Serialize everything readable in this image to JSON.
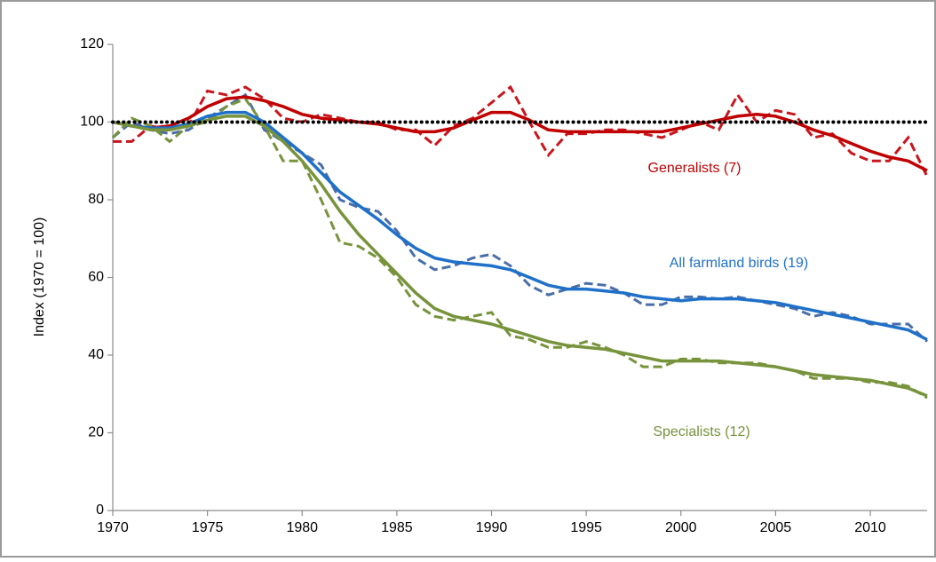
{
  "chart_data": {
    "type": "line",
    "y_label": "Index (1970 = 100)",
    "x": [
      1970,
      1971,
      1972,
      1973,
      1974,
      1975,
      1976,
      1977,
      1978,
      1979,
      1980,
      1981,
      1982,
      1983,
      1984,
      1985,
      1986,
      1987,
      1988,
      1989,
      1990,
      1991,
      1992,
      1993,
      1994,
      1995,
      1996,
      1997,
      1998,
      1999,
      2000,
      2001,
      2002,
      2003,
      2004,
      2005,
      2006,
      2007,
      2008,
      2009,
      2010,
      2011,
      2012,
      2013
    ],
    "xlim": [
      1970,
      2013
    ],
    "xticks": [
      1970,
      1975,
      1980,
      1985,
      1990,
      1995,
      2000,
      2005,
      2010
    ],
    "ylim": [
      0,
      120
    ],
    "yticks": [
      0,
      20,
      40,
      60,
      80,
      100,
      120
    ],
    "grid": false,
    "reference_line": 100,
    "series": [
      {
        "name": "Generalists (7)",
        "color": "#c00000",
        "raw_color": "#c8161d",
        "values": [
          100,
          99,
          98.5,
          99,
          101,
          104,
          106,
          106.5,
          105.5,
          104,
          102,
          101,
          100.5,
          100,
          99.5,
          98.5,
          97.5,
          97.5,
          98.5,
          100.5,
          102.5,
          102.5,
          100.5,
          98,
          97.5,
          97.5,
          97.5,
          97.5,
          97.5,
          97.5,
          98.5,
          99.5,
          100.5,
          101.5,
          102,
          101.5,
          100,
          98,
          96.5,
          94.5,
          92.5,
          91,
          90,
          87.5
        ],
        "unsmoothed": [
          95,
          95,
          99,
          98,
          99,
          108,
          107,
          109,
          106,
          101,
          100,
          102,
          101,
          100,
          100,
          98,
          98,
          94,
          99,
          101,
          105,
          109,
          100,
          91.5,
          97,
          97,
          98,
          98,
          97,
          96,
          98,
          100,
          98,
          107,
          100,
          103,
          102,
          96,
          97,
          92,
          90,
          90,
          96,
          86
        ]
      },
      {
        "name": "All farmland birds (19)",
        "color": "#1f70c8",
        "raw_color": "#4a6ea8",
        "values": [
          100,
          99,
          98.5,
          98.5,
          99.5,
          101.5,
          102.5,
          102.5,
          100,
          96,
          92,
          87,
          82,
          78.5,
          75,
          71,
          67.5,
          65,
          64,
          63.5,
          63,
          62,
          60,
          58,
          57,
          57,
          56.5,
          56,
          55,
          54.5,
          54,
          54.5,
          54.5,
          54.5,
          54,
          53.5,
          52.5,
          51.5,
          50.5,
          49.5,
          48.5,
          47.5,
          46.5,
          44
        ],
        "unsmoothed": [
          96,
          100,
          98,
          97,
          98,
          101,
          104,
          107,
          98,
          95,
          92,
          89,
          80,
          78,
          77,
          72,
          65,
          62,
          63,
          65,
          66,
          63,
          58,
          55.5,
          57,
          58.5,
          58,
          56,
          53,
          53,
          55,
          55,
          54.5,
          55,
          54,
          53,
          52,
          50,
          51,
          50,
          48,
          48,
          48,
          43.5
        ]
      },
      {
        "name": "Specialists (12)",
        "color": "#77933c",
        "raw_color": "#77933c",
        "values": [
          100,
          99,
          98,
          98,
          99,
          100.5,
          101.5,
          101.5,
          99,
          95,
          90,
          84,
          77,
          71,
          66,
          61,
          56,
          52,
          50,
          49,
          48,
          46.5,
          45,
          43.5,
          42.5,
          42,
          41.5,
          40.5,
          39.5,
          38.5,
          38.5,
          38.5,
          38.5,
          38,
          37.5,
          37,
          36,
          35,
          34.5,
          34,
          33.5,
          32.5,
          31.5,
          29.5
        ],
        "unsmoothed": [
          96,
          101,
          99,
          95,
          99,
          100,
          104,
          106,
          99,
          90,
          90,
          80,
          69,
          68,
          65,
          60,
          53,
          50,
          49,
          50,
          51,
          45,
          44,
          42,
          42,
          43.5,
          42,
          40,
          37,
          37,
          39,
          39,
          38,
          38,
          38,
          37,
          36,
          34,
          34,
          34,
          33,
          33,
          32,
          29
        ]
      }
    ]
  }
}
